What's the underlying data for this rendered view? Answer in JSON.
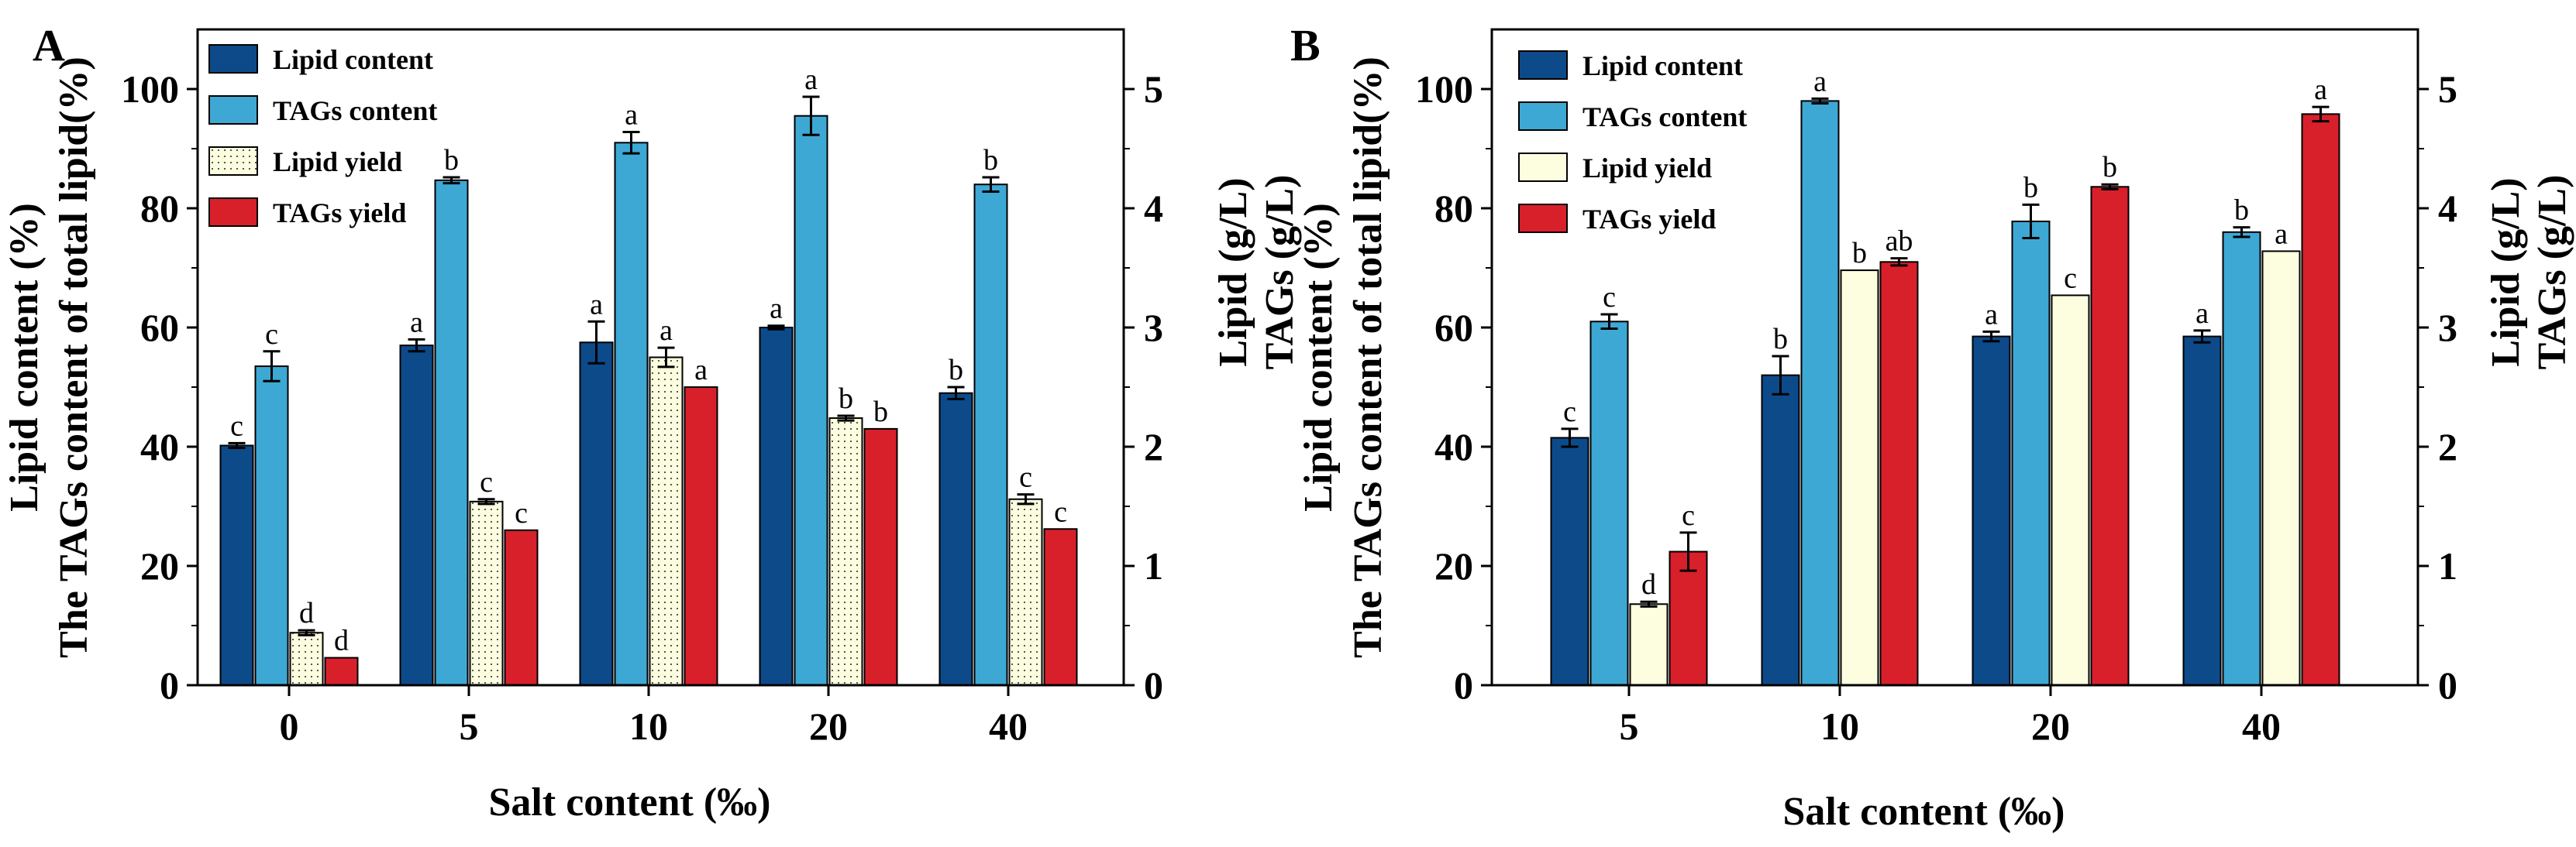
{
  "panels": [
    "A",
    "B"
  ],
  "chart_data": [
    {
      "panel": "A",
      "type": "bar",
      "xlabel": "Salt content (‰)",
      "ylabel_left": [
        "Lipid content (%)",
        "The TAGs content of total lipid(%)"
      ],
      "ylabel_right": [
        "Lipid (g/L)",
        "TAGs (g/L)"
      ],
      "ylim_left": [
        0,
        110
      ],
      "yticks_left": [
        "0",
        "20",
        "40",
        "60",
        "80",
        "100"
      ],
      "ylim_right": [
        0,
        5.5
      ],
      "yticks_right": [
        "0",
        "1",
        "2",
        "3",
        "4",
        "5"
      ],
      "legend_position": "top-left",
      "grid": false,
      "categories": [
        "0",
        "5",
        "10",
        "20",
        "40"
      ],
      "series": [
        {
          "name": "Lipid content",
          "axis": "left",
          "color": "#0d4a8a",
          "style": "solid",
          "values": [
            40.2,
            57.0,
            57.5,
            60.0,
            49.0
          ],
          "errors": [
            0.4,
            1.0,
            3.5,
            0.3,
            1.0
          ],
          "letters": [
            "c",
            "a",
            "a",
            "a",
            "b"
          ]
        },
        {
          "name": "TAGs content",
          "axis": "left",
          "color": "#3ea8d4",
          "style": "solid",
          "values": [
            53.5,
            84.7,
            91.0,
            95.5,
            84.0
          ],
          "errors": [
            2.5,
            0.5,
            1.8,
            3.2,
            1.2
          ],
          "letters": [
            "c",
            "b",
            "a",
            "a",
            "b"
          ]
        },
        {
          "name": "Lipid yield",
          "axis": "right",
          "color": "#fdfde0",
          "style": "dotted",
          "values": [
            0.44,
            1.54,
            2.75,
            2.24,
            1.56
          ],
          "errors": [
            0.02,
            0.02,
            0.08,
            0.02,
            0.04
          ],
          "letters": [
            "d",
            "c",
            "a",
            "b",
            "c"
          ]
        },
        {
          "name": "TAGs yield",
          "axis": "right",
          "color": "#d8202b",
          "style": "solid",
          "values": [
            0.23,
            1.3,
            2.5,
            2.15,
            1.31
          ],
          "errors": [
            0.0,
            0.0,
            0.0,
            0.0,
            0.0
          ],
          "letters": [
            "d",
            "c",
            "a",
            "b",
            "c"
          ]
        }
      ]
    },
    {
      "panel": "B",
      "type": "bar",
      "xlabel": "Salt content (‰)",
      "ylabel_left": [
        "Lipid content (%)",
        "The TAGs content of total lipid(%)"
      ],
      "ylabel_right": [
        "Lipid (g/L)",
        "TAGs (g/L)"
      ],
      "ylim_left": [
        0,
        110
      ],
      "yticks_left": [
        "0",
        "20",
        "40",
        "60",
        "80",
        "100"
      ],
      "ylim_right": [
        0,
        5.5
      ],
      "yticks_right": [
        "0",
        "1",
        "2",
        "3",
        "4",
        "5"
      ],
      "legend_position": "top-left",
      "grid": false,
      "categories": [
        "5",
        "10",
        "20",
        "40"
      ],
      "series": [
        {
          "name": "Lipid content",
          "axis": "left",
          "color": "#0d4a8a",
          "style": "solid",
          "values": [
            41.5,
            52.0,
            58.5,
            58.5
          ],
          "errors": [
            1.5,
            3.2,
            0.8,
            1.0
          ],
          "letters": [
            "c",
            "b",
            "a",
            "a"
          ]
        },
        {
          "name": "TAGs content",
          "axis": "left",
          "color": "#3ea8d4",
          "style": "solid",
          "values": [
            61.0,
            98.0,
            77.8,
            76.0
          ],
          "errors": [
            1.2,
            0.4,
            2.8,
            0.8
          ],
          "letters": [
            "c",
            "a",
            "b",
            "b"
          ]
        },
        {
          "name": "Lipid yield",
          "axis": "right",
          "color": "#fdfde0",
          "style": "solid",
          "values": [
            0.68,
            3.48,
            3.27,
            3.64
          ],
          "errors": [
            0.02,
            0.0,
            0.0,
            0.0
          ],
          "letters": [
            "d",
            "b",
            "c",
            "a"
          ]
        },
        {
          "name": "TAGs yield",
          "axis": "right",
          "color": "#d8202b",
          "style": "solid",
          "values": [
            1.12,
            3.55,
            4.18,
            4.79
          ],
          "errors": [
            0.16,
            0.03,
            0.02,
            0.06
          ],
          "letters": [
            "c",
            "ab",
            "b",
            "a"
          ]
        }
      ]
    }
  ]
}
